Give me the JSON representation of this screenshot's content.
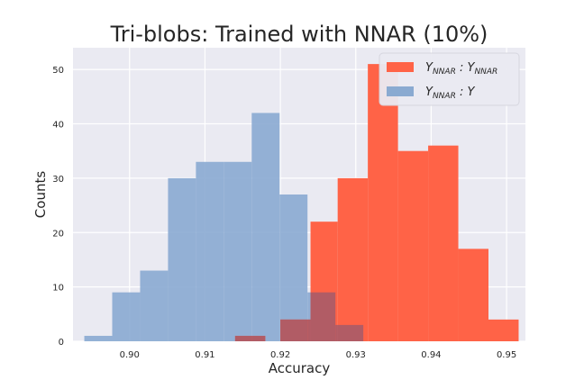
{
  "chart_data": {
    "type": "histogram",
    "title": "Tri-blobs: Trained with NNAR (10%)",
    "xlabel": "Accuracy",
    "ylabel": "Counts",
    "xlim": [
      0.8925,
      0.9525
    ],
    "ylim": [
      0,
      54
    ],
    "xticks": [
      0.9,
      0.91,
      0.92,
      0.93,
      0.94,
      0.95
    ],
    "xtick_labels": [
      "0.90",
      "0.91",
      "0.92",
      "0.93",
      "0.94",
      "0.95"
    ],
    "yticks": [
      0,
      10,
      20,
      30,
      40,
      50
    ],
    "ytick_labels": [
      "0",
      "10",
      "20",
      "30",
      "40",
      "50"
    ],
    "grid": true,
    "legend_position": "top-right",
    "colors": {
      "background": "#eaeaf2",
      "grid": "#ffffff",
      "series_1": "#ff6347",
      "series_2": "#8aaad1"
    },
    "series": [
      {
        "name": "Y_NNAR : Y_NNAR",
        "legend_main": "Y",
        "legend_sub": "NNAR",
        "legend_sep": " : ",
        "legend_main2": "Y",
        "legend_sub2": "NNAR",
        "color": "#ff6347",
        "opacity": 1.0,
        "bin_edges": [
          0.914,
          0.918,
          0.92,
          0.924,
          0.9276,
          0.9316,
          0.9356,
          0.9396,
          0.9436,
          0.9476,
          0.9516
        ],
        "counts": [
          1,
          0,
          4,
          22,
          30,
          51,
          35,
          36,
          17,
          4
        ]
      },
      {
        "name": "Y_NNAR : Y",
        "legend_main": "Y",
        "legend_sub": "NNAR",
        "legend_sep": " : ",
        "legend_main2": "Y",
        "legend_sub2": "",
        "color": "#8aaad1",
        "opacity": 0.9,
        "bin_edges": [
          0.894,
          0.8977,
          0.9014,
          0.9051,
          0.9088,
          0.9125,
          0.9162,
          0.9199,
          0.9236,
          0.9273,
          0.931
        ],
        "counts": [
          1,
          9,
          13,
          30,
          33,
          33,
          42,
          27,
          9,
          3
        ]
      }
    ]
  }
}
